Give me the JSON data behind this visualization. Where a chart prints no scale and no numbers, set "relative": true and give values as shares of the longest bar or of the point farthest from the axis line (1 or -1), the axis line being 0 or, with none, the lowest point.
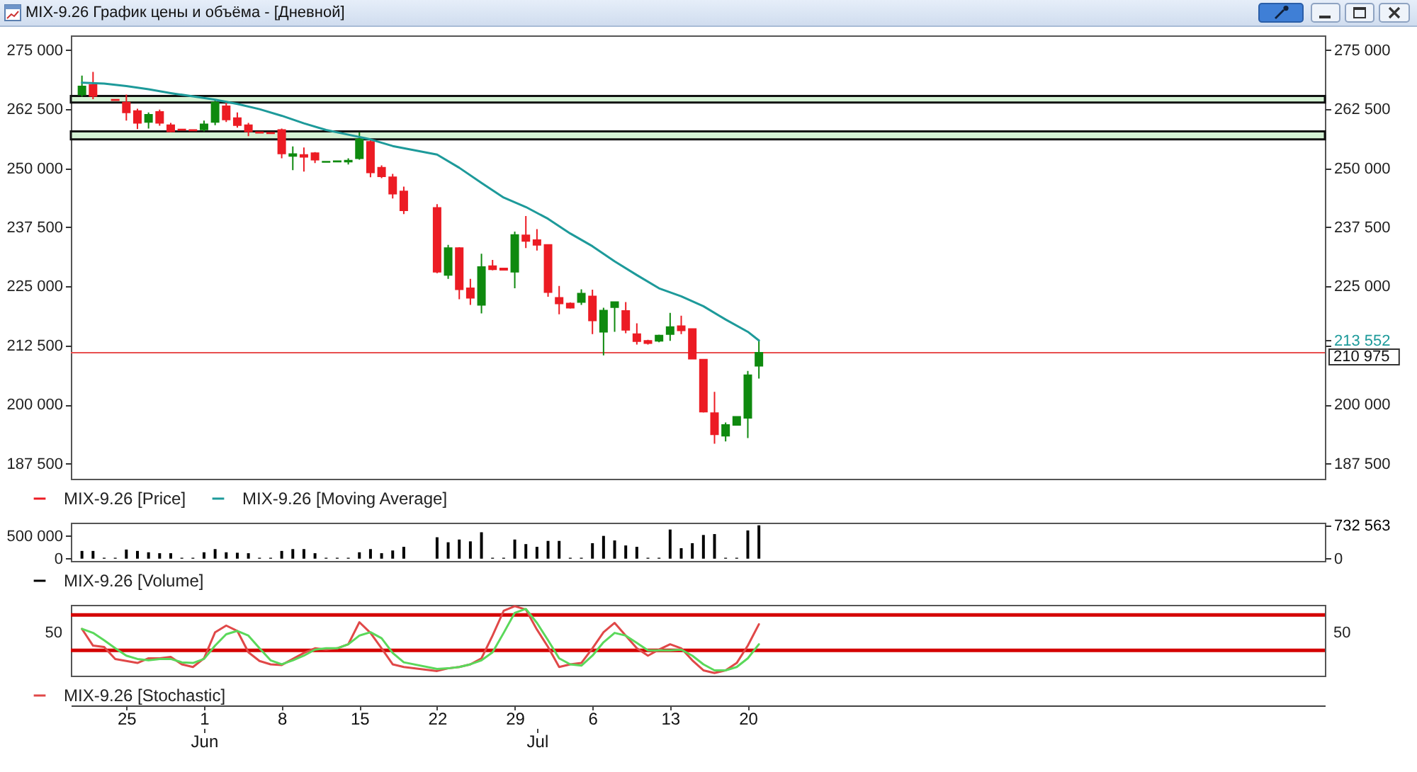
{
  "chart_data": [
    {
      "type": "candlestick",
      "title": "MIX-9.26 График цены и объёма - [Дневной]",
      "x": [
        "--05-21",
        "--05-22",
        "--05-24",
        "--05-25",
        "--05-26",
        "--05-27",
        "--05-28",
        "--05-29",
        "--05-30",
        "--05-31",
        "--06-01",
        "--06-02",
        "--06-03",
        "--06-04",
        "--06-05",
        "--06-06",
        "--06-07",
        "--06-08",
        "--06-09",
        "--06-10",
        "--06-11",
        "--06-12",
        "--06-13",
        "--06-14",
        "--06-15",
        "--06-16",
        "--06-17",
        "--06-18",
        "--06-19",
        "--06-22",
        "--06-23",
        "--06-24",
        "--06-25",
        "--06-26",
        "--06-27",
        "--06-28",
        "--06-29",
        "--06-30",
        "--07-01",
        "--07-02",
        "--07-03",
        "--07-04",
        "--07-05",
        "--07-06",
        "--07-07",
        "--07-08",
        "--07-09",
        "--07-10",
        "--07-11",
        "--07-12",
        "--07-13",
        "--07-14",
        "--07-15",
        "--07-16",
        "--07-17",
        "--07-18",
        "--07-19",
        "--07-20",
        "--07-21"
      ],
      "series": [
        {
          "name": "MIX-9.26 [Price]",
          "color": "#ec1c24",
          "colors": [
            "#0f8a0f",
            "#ec1c24",
            "#ec1c24",
            "#ec1c24",
            "#ec1c24",
            "#0f8a0f",
            "#ec1c24",
            "#ec1c24",
            "#ec1c24",
            "#ec1c24",
            "#0f8a0f",
            "#0f8a0f",
            "#ec1c24",
            "#ec1c24",
            "#ec1c24",
            "#ec1c24",
            "#ec1c24",
            "#ec1c24",
            "#0f8a0f",
            "#ec1c24",
            "#ec1c24",
            "#0f8a0f",
            "#0f8a0f",
            "#0f8a0f",
            "#0f8a0f",
            "#ec1c24",
            "#ec1c24",
            "#ec1c24",
            "#ec1c24",
            "#ec1c24",
            "#0f8a0f",
            "#ec1c24",
            "#ec1c24",
            "#0f8a0f",
            "#ec1c24",
            "#ec1c24",
            "#0f8a0f",
            "#ec1c24",
            "#ec1c24",
            "#ec1c24",
            "#ec1c24",
            "#ec1c24",
            "#0f8a0f",
            "#ec1c24",
            "#0f8a0f",
            "#0f8a0f",
            "#ec1c24",
            "#ec1c24",
            "#ec1c24",
            "#0f8a0f",
            "#0f8a0f",
            "#ec1c24",
            "#ec1c24",
            "#ec1c24",
            "#ec1c24",
            "#0f8a0f",
            "#0f8a0f",
            "#0f8a0f",
            "#0f8a0f"
          ],
          "ohlc": [
            [
              265600,
              269600,
              265100,
              267300
            ],
            [
              267600,
              270400,
              264600,
              265300
            ],
            [
              264500,
              264500,
              264400,
              264400
            ],
            [
              263900,
              265600,
              260100,
              261800
            ],
            [
              262100,
              262600,
              258300,
              259600
            ],
            [
              259800,
              261800,
              258400,
              261300
            ],
            [
              261900,
              262400,
              259000,
              259600
            ],
            [
              259100,
              259600,
              257600,
              257800
            ],
            [
              258200,
              258200,
              258100,
              258100
            ],
            [
              258100,
              258100,
              258000,
              258000
            ],
            [
              258200,
              260100,
              257800,
              259300
            ],
            [
              259800,
              264600,
              259100,
              263900
            ],
            [
              263100,
              264100,
              259800,
              260300
            ],
            [
              260600,
              261800,
              258600,
              259100
            ],
            [
              259100,
              259600,
              256800,
              257800
            ],
            [
              257600,
              257600,
              257500,
              257500
            ],
            [
              257500,
              257500,
              257400,
              257400
            ],
            [
              258100,
              258400,
              252100,
              253100
            ],
            [
              252600,
              254600,
              249600,
              253000
            ],
            [
              252800,
              254400,
              249300,
              252400
            ],
            [
              253200,
              253400,
              251100,
              251800
            ],
            [
              251300,
              251500,
              251300,
              251400
            ],
            [
              251400,
              251500,
              251300,
              251500
            ],
            [
              251400,
              252100,
              250800,
              251600
            ],
            [
              252100,
              257600,
              251800,
              256100
            ],
            [
              255600,
              256100,
              248100,
              249100
            ],
            [
              250100,
              250600,
              247900,
              248300
            ],
            [
              248100,
              248800,
              243600,
              244600
            ],
            [
              245100,
              246100,
              240300,
              241100
            ],
            [
              241600,
              242400,
              227800,
              228100
            ],
            [
              227400,
              233800,
              226600,
              233100
            ],
            [
              233100,
              233300,
              222300,
              224400
            ],
            [
              224600,
              226600,
              221100,
              222600
            ],
            [
              221100,
              231900,
              219300,
              229100
            ],
            [
              229300,
              230600,
              228400,
              228600
            ],
            [
              228800,
              228900,
              228400,
              228500
            ],
            [
              228100,
              236600,
              224600,
              235900
            ],
            [
              235800,
              239900,
              233100,
              234600
            ],
            [
              234800,
              237100,
              232600,
              233800
            ],
            [
              233800,
              233900,
              222800,
              223800
            ],
            [
              222600,
              225100,
              219100,
              221400
            ],
            [
              221400,
              221600,
              220300,
              220500
            ],
            [
              221700,
              224400,
              221100,
              223500
            ],
            [
              222900,
              224300,
              214900,
              217800
            ],
            [
              215400,
              220500,
              210400,
              219900
            ],
            [
              220600,
              221800,
              215400,
              221700
            ],
            [
              219800,
              221700,
              215100,
              215800
            ],
            [
              214900,
              217200,
              212700,
              213400
            ],
            [
              213500,
              213700,
              212700,
              213000
            ],
            [
              213500,
              214800,
              213200,
              214600
            ],
            [
              214900,
              219400,
              213500,
              216400
            ],
            [
              216600,
              218800,
              214900,
              215700
            ],
            [
              216000,
              216100,
              209600,
              209700
            ],
            [
              209500,
              209600,
              198300,
              198500
            ],
            [
              198200,
              202700,
              191700,
              193700
            ],
            [
              193400,
              196200,
              192200,
              195700
            ],
            [
              195700,
              197500,
              195600,
              197400
            ],
            [
              197200,
              207100,
              192900,
              206200
            ],
            [
              208200,
              213700,
              205500,
              210975
            ]
          ]
        },
        {
          "name": "MIX-9.26 [Moving Average]",
          "type": "line",
          "color": "#1d9a9a",
          "x": [
            "--05-21",
            "--05-23",
            "--05-25",
            "--05-27",
            "--05-29",
            "--05-31",
            "--06-02",
            "--06-04",
            "--06-06",
            "--06-08",
            "--06-10",
            "--06-12",
            "--06-14",
            "--06-16",
            "--06-18",
            "--06-22",
            "--06-24",
            "--06-26",
            "--06-28",
            "--06-30",
            "--07-02",
            "--07-04",
            "--07-06",
            "--07-08",
            "--07-10",
            "--07-12",
            "--07-14",
            "--07-16",
            "--07-18",
            "--07-20",
            "--07-21"
          ],
          "values": [
            268100,
            267900,
            267400,
            266700,
            265900,
            265200,
            264500,
            263600,
            262500,
            261100,
            259500,
            258100,
            257100,
            256100,
            254700,
            252900,
            250100,
            246900,
            243800,
            241800,
            239300,
            236200,
            233500,
            230300,
            227400,
            224600,
            222900,
            220800,
            218000,
            215400,
            213552
          ]
        }
      ],
      "xlim": [
        "--05-20",
        "--09-10"
      ],
      "ylim": [
        184300,
        278100
      ],
      "yticks": [
        {
          "value": 187500,
          "label": "187 500"
        },
        {
          "value": 200000,
          "label": "200 000"
        },
        {
          "value": 212500,
          "label": "212 500"
        },
        {
          "value": 225000,
          "label": "225 000"
        },
        {
          "value": 237500,
          "label": "237 500"
        },
        {
          "value": 250000,
          "label": "250 000"
        },
        {
          "value": 262500,
          "label": "262 500"
        },
        {
          "value": 275000,
          "label": "275 000"
        }
      ],
      "y2lim": [
        184300,
        278100
      ],
      "y2ticks": [
        {
          "value": 187500,
          "label": "187 500"
        },
        {
          "value": 200000,
          "label": "200 000"
        },
        {
          "value": 212500,
          "label": null
        },
        {
          "value": 213552,
          "label": "213 552"
        },
        {
          "value": 225000,
          "label": "225 000"
        },
        {
          "value": 237500,
          "label": "237 500"
        },
        {
          "value": 250000,
          "label": "250 000"
        },
        {
          "value": 262500,
          "label": "262 500"
        },
        {
          "value": 275000,
          "label": "275 000"
        }
      ],
      "ref_lines": [
        {
          "axis": "y",
          "value": 210975,
          "label": "210 975",
          "color": "#e85050"
        }
      ],
      "bands": [
        {
          "axis": "y",
          "from": 263900,
          "to": 265300,
          "color": "#d4f2d4"
        },
        {
          "axis": "y",
          "from": 256100,
          "to": 257800,
          "color": "#d4f2d4"
        }
      ],
      "legend": "bottom",
      "tick_labels": "y"
    },
    {
      "type": "bar",
      "x": [
        "--05-21",
        "--05-22",
        "--05-23",
        "--05-24",
        "--05-25",
        "--05-26",
        "--05-27",
        "--05-28",
        "--05-29",
        "--05-30",
        "--05-31",
        "--06-01",
        "--06-02",
        "--06-03",
        "--06-04",
        "--06-05",
        "--06-06",
        "--06-07",
        "--06-08",
        "--06-09",
        "--06-10",
        "--06-11",
        "--06-12",
        "--06-13",
        "--06-14",
        "--06-15",
        "--06-16",
        "--06-17",
        "--06-18",
        "--06-19",
        "--06-22",
        "--06-23",
        "--06-24",
        "--06-25",
        "--06-26",
        "--06-27",
        "--06-28",
        "--06-29",
        "--06-30",
        "--07-01",
        "--07-02",
        "--07-03",
        "--07-04",
        "--07-05",
        "--07-06",
        "--07-07",
        "--07-08",
        "--07-09",
        "--07-10",
        "--07-11",
        "--07-12",
        "--07-13",
        "--07-14",
        "--07-15",
        "--07-16",
        "--07-17",
        "--07-18",
        "--07-19",
        "--07-20",
        "--07-21"
      ],
      "series": [
        {
          "name": "MIX-9.26 [Volume]",
          "color": "#000000",
          "values": [
            170000,
            170000,
            20000,
            20000,
            200000,
            170000,
            140000,
            120000,
            120000,
            20000,
            20000,
            140000,
            210000,
            140000,
            130000,
            120000,
            20000,
            20000,
            170000,
            210000,
            210000,
            120000,
            20000,
            20000,
            20000,
            140000,
            210000,
            120000,
            180000,
            260000,
            470000,
            360000,
            420000,
            380000,
            580000,
            20000,
            20000,
            420000,
            320000,
            260000,
            390000,
            390000,
            20000,
            20000,
            340000,
            500000,
            400000,
            290000,
            260000,
            20000,
            20000,
            640000,
            230000,
            340000,
            520000,
            540000,
            20000,
            20000,
            620000,
            732563
          ]
        }
      ],
      "xlim": [
        "--05-20",
        "--09-10"
      ],
      "ylim": [
        -50000,
        790000
      ],
      "yticks": [
        0,
        {
          "value": 500000,
          "label": "500 000"
        }
      ],
      "y2lim": [
        -50000,
        790000
      ],
      "y2ticks": [
        0,
        {
          "value": 732563,
          "label": "732 563"
        }
      ],
      "legend": "bottom",
      "tick_labels": "y"
    },
    {
      "type": "line",
      "relative": true,
      "x": [
        "--05-21",
        "--05-22",
        "--05-23",
        "--05-24",
        "--05-25",
        "--05-26",
        "--05-27",
        "--05-28",
        "--05-29",
        "--05-30",
        "--05-31",
        "--06-01",
        "--06-02",
        "--06-03",
        "--06-04",
        "--06-05",
        "--06-06",
        "--06-07",
        "--06-08",
        "--06-09",
        "--06-10",
        "--06-11",
        "--06-12",
        "--06-13",
        "--06-14",
        "--06-15",
        "--06-16",
        "--06-17",
        "--06-18",
        "--06-19",
        "--06-22",
        "--06-23",
        "--06-24",
        "--06-25",
        "--06-26",
        "--06-27",
        "--06-28",
        "--06-29",
        "--06-30",
        "--07-01",
        "--07-02",
        "--07-03",
        "--07-04",
        "--07-05",
        "--07-06",
        "--07-07",
        "--07-08",
        "--07-09",
        "--07-10",
        "--07-11",
        "--07-12",
        "--07-13",
        "--07-14",
        "--07-15",
        "--07-16",
        "--07-17",
        "--07-18",
        "--07-19",
        "--07-20",
        "--07-21"
      ],
      "series": [
        {
          "name": "MIX-9.26 [Stochastic]",
          "color": "#e04848",
          "values": [
            0.66,
            0.41,
            0.39,
            0.21,
            0.18,
            0.15,
            0.22,
            0.22,
            0.24,
            0.13,
            0.09,
            0.22,
            0.61,
            0.71,
            0.63,
            0.31,
            0.18,
            0.13,
            0.12,
            0.21,
            0.3,
            0.37,
            0.35,
            0.37,
            0.43,
            0.76,
            0.6,
            0.37,
            0.13,
            0.09,
            0.03,
            0.07,
            0.09,
            0.13,
            0.22,
            0.56,
            0.93,
            1.0,
            0.95,
            0.65,
            0.39,
            0.09,
            0.13,
            0.15,
            0.37,
            0.61,
            0.75,
            0.56,
            0.37,
            0.26,
            0.35,
            0.43,
            0.37,
            0.19,
            0.04,
            0,
            0.04,
            0.15,
            0.41,
            0.73
          ]
        },
        {
          "color": "#5ad85a",
          "values": [
            0.66,
            0.6,
            0.49,
            0.37,
            0.26,
            0.21,
            0.19,
            0.21,
            0.21,
            0.16,
            0.15,
            0.21,
            0.41,
            0.58,
            0.63,
            0.56,
            0.37,
            0.19,
            0.13,
            0.19,
            0.26,
            0.35,
            0.37,
            0.37,
            0.43,
            0.56,
            0.61,
            0.52,
            0.3,
            0.16,
            0.06,
            0.07,
            0.09,
            0.13,
            0.19,
            0.31,
            0.6,
            0.9,
            0.96,
            0.75,
            0.49,
            0.22,
            0.13,
            0.11,
            0.26,
            0.46,
            0.6,
            0.56,
            0.45,
            0.34,
            0.34,
            0.34,
            0.35,
            0.26,
            0.13,
            0.04,
            0.04,
            0.09,
            0.22,
            0.43
          ]
        }
      ],
      "xlim": [
        "--05-20",
        "--09-10"
      ],
      "xticks": [
        {
          "value": "--05-25",
          "label": "25"
        },
        {
          "value": "--06-01",
          "label": "1"
        },
        {
          "value": "--06-08",
          "label": "8"
        },
        {
          "value": "--06-15",
          "label": "15"
        },
        {
          "value": "--06-22",
          "label": "22"
        },
        {
          "value": "--06-29",
          "label": "29"
        },
        {
          "value": "--07-06",
          "label": "6"
        },
        {
          "value": "--07-13",
          "label": "13"
        },
        {
          "value": "--07-20",
          "label": "20"
        }
      ],
      "x2lim": [
        "--05-20",
        "--09-10"
      ],
      "x2ticks": [
        {
          "value": "--06-01",
          "label": "Jun"
        },
        {
          "value": "--07-01",
          "label": "Jul"
        }
      ],
      "ref_lines": [
        {
          "axis": "y",
          "value": 0.87,
          "color": "#d40000"
        },
        {
          "axis": "y",
          "value": 0.34,
          "color": "#d40000"
        }
      ],
      "annotations": [
        "50",
        "50"
      ],
      "legend": "bottom"
    }
  ]
}
